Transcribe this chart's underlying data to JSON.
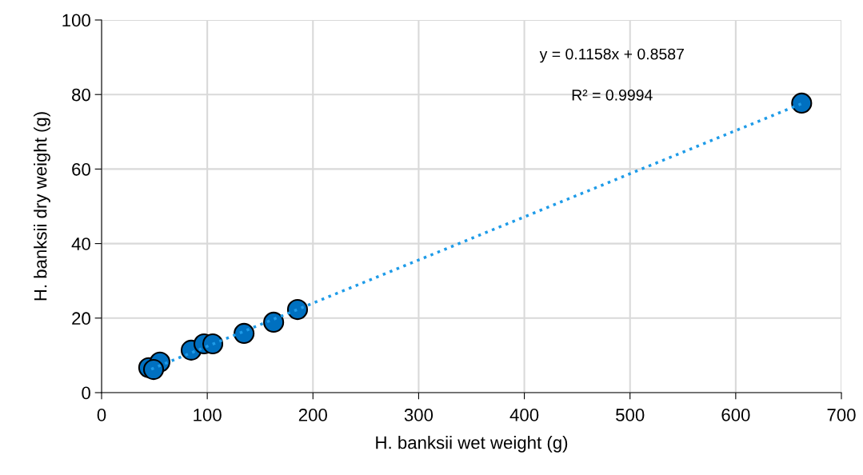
{
  "chart_data": {
    "type": "scatter",
    "marker": "circle",
    "xlabel": "H. banksii wet weight (g)",
    "ylabel": "H. banksii dry weight (g)",
    "xlim": [
      0,
      700
    ],
    "xticks": [
      0,
      100,
      200,
      300,
      400,
      500,
      600,
      700
    ],
    "ylim": [
      0,
      100
    ],
    "yticks": [
      0,
      20,
      40,
      60,
      80,
      100
    ],
    "grid": true,
    "legend": false,
    "series": [
      {
        "color": "#0070c0",
        "x": [
          44.6,
          55.2,
          49.2,
          84.8,
          96.9,
          105.2,
          134.8,
          162.8,
          185.4,
          662.4
        ],
        "values": [
          6.7,
          8.2,
          6.2,
          11.4,
          13.1,
          13.1,
          15.9,
          18.9,
          22.3,
          77.7
        ]
      },
      {
        "type": "line",
        "color": "#1e9be8",
        "line_style": "dotted",
        "marker": "none",
        "x": [
          47,
          662
        ],
        "values": [
          6.3,
          77.5
        ]
      }
    ],
    "annotations": [
      "y = 0.1158x + 0.8587",
      "R² = 0.9994"
    ]
  }
}
